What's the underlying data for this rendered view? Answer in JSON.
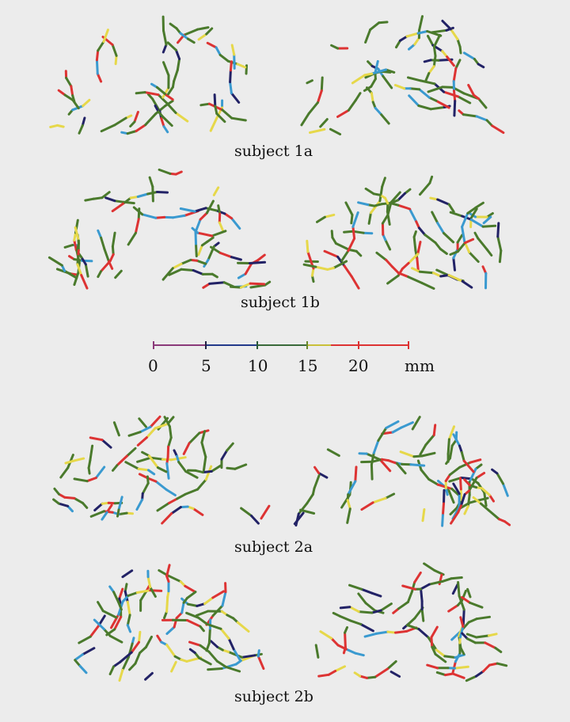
{
  "panels": [
    {
      "label": "subject 1a"
    },
    {
      "label": "subject 1b"
    },
    {
      "label": "subject 2a"
    },
    {
      "label": "subject 2b"
    }
  ],
  "colorbar": {
    "ticks": [
      "0",
      "5",
      "10",
      "15",
      "20"
    ],
    "unit": "mm",
    "colors": [
      "#d33",
      "#e6d84a",
      "#4a7a2c",
      "#3a9ad0",
      "#222266",
      "#c07070"
    ]
  }
}
